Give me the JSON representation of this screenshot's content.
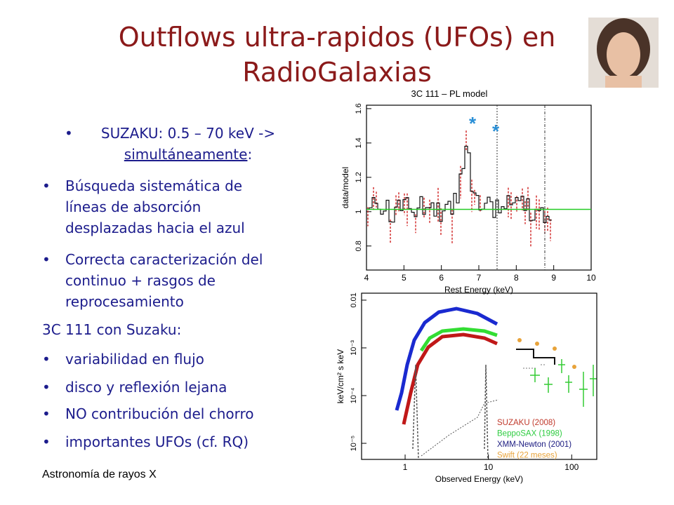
{
  "title_lines": [
    "Outflows ultra-rapidos (UFOs) en",
    "RadioGalaxias"
  ],
  "intro": {
    "text": "SUZAKU:  0.5 – 70 keV ->",
    "underlined": "simultáneamente",
    "end": ":"
  },
  "bullets_1": [
    {
      "lines": [
        "Búsqueda sistemática de",
        "líneas de absorción",
        "desplazadas hacia el azul"
      ]
    },
    {
      "lines": [
        "Correcta caracterización del",
        "continuo + rasgos de",
        "reprocesamiento"
      ]
    }
  ],
  "heading": "3C 111 con Suzaku:",
  "bullets_2": [
    "variabilidad en flujo",
    "disco y reflexión lejana",
    "NO contribución del chorro",
    "importantes UFOs (cf. RQ)"
  ],
  "footer": "Astronomía de rayos X",
  "figures": [
    {
      "title": "3C 111 – PL model",
      "xlabel": "Rest Energy (keV)",
      "ylabel": "data/model",
      "xlim": [
        4,
        10
      ],
      "ylim": [
        0.66,
        1.62
      ],
      "log": false,
      "xticks": [
        4,
        5,
        6,
        7,
        8,
        9,
        10
      ],
      "yticks": [
        0.8,
        1,
        1.2,
        1.4,
        1.6
      ],
      "markers": [
        "*",
        "*"
      ]
    },
    {
      "xlabel": "Observed Energy (keV)",
      "ylabel": "keV/cm² s keV",
      "xlim": [
        0.3,
        200
      ],
      "ylim": [
        4.6e-06,
        0.014
      ],
      "log": true,
      "xticks": [
        1,
        10,
        100
      ],
      "yticks": [
        0.01,
        {
          "value": 0.001,
          "label": "10⁻³"
        },
        {
          "value": 0.0001,
          "label": "10⁻⁴"
        },
        {
          "value": 1e-05,
          "label": "10⁻⁵"
        }
      ],
      "legend": [
        {
          "name": "SUZAKU (2008)",
          "color": "#c0392b"
        },
        {
          "name": "BeppoSAX (1998)",
          "color": "#2ecc40"
        },
        {
          "name": "XMM-Newton (2001)",
          "color": "#1a1a80"
        },
        {
          "name": "Swift (22 meses)",
          "color": "#e8a33a"
        }
      ]
    }
  ]
}
